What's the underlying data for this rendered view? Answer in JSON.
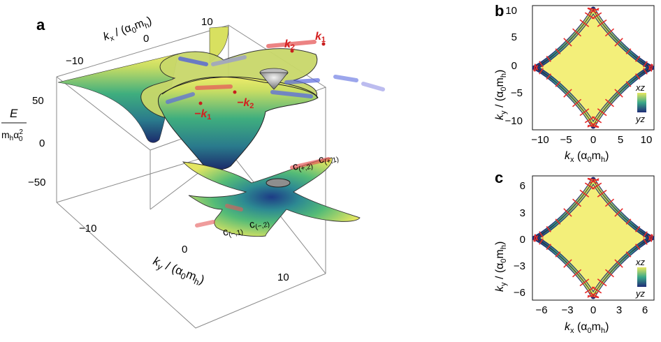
{
  "panel_a": {
    "letter": "a",
    "kx_label": "k",
    "kx_sub": "x",
    "kx_unit": " / (α",
    "kx_unit_sub": "0",
    "kx_unit_end": "m",
    "kx_unit_end_sub": "h",
    "kx_unit_close": ")",
    "kx_ticks": [
      "−10",
      "0",
      "10"
    ],
    "ky_label": "k",
    "ky_sub": "y",
    "ky_unit": " / (α",
    "ky_unit_sub": "0",
    "ky_unit_end": "m",
    "ky_unit_end_sub": "h",
    "ky_unit_close": ")",
    "ky_ticks": [
      "−10",
      "0",
      "10"
    ],
    "e_num": "E",
    "e_den": "m",
    "e_den_sub": "h",
    "e_den_alpha": "α",
    "e_den_alpha_sup": "2",
    "e_den_alpha_sub": "0",
    "e_ticks": [
      "50",
      "0",
      "−50"
    ],
    "k1": "k",
    "k1_sub": "1",
    "k2": "k",
    "k2_sub": "2",
    "mk1": "−k",
    "mk1_sub": "1",
    "mk2": "−k",
    "mk2_sub": "2",
    "c_p2": "c",
    "c_p2_sub": "(+,2)",
    "c_p1": "c",
    "c_p1_sub": "(+,1)",
    "c_m1": "c",
    "c_m1_sub": "(−,1)",
    "c_m2": "c",
    "c_m2_sub": "(−,2)"
  },
  "panel_b": {
    "letter": "b",
    "x_ticks": [
      "−10",
      "−5",
      "0",
      "5",
      "10"
    ],
    "y_ticks": [
      "10",
      "5",
      "0",
      "−5",
      "−10"
    ],
    "xlabel": "k",
    "xlabel_sub": "x",
    "xlabel_unit": " (α",
    "xlabel_unit_sub": "0",
    "xlabel_unit_end": "m",
    "xlabel_unit_end_sub": "h",
    "ylabel": "k",
    "ylabel_sub": "y",
    "ylabel_unit": " / (α",
    "ylabel_unit_sub": "0",
    "ylabel_unit_end": "m",
    "ylabel_unit_end_sub": "h",
    "legend_top": "xz",
    "legend_bottom": "yz"
  },
  "panel_c": {
    "letter": "c",
    "x_ticks": [
      "−6",
      "−3",
      "0",
      "3",
      "6"
    ],
    "y_ticks": [
      "6",
      "3",
      "0",
      "−3",
      "−6"
    ],
    "xlabel": "k",
    "xlabel_sub": "x",
    "xlabel_unit": " (α",
    "xlabel_unit_sub": "0",
    "xlabel_unit_end": "m",
    "xlabel_unit_end_sub": "h",
    "ylabel": "k",
    "ylabel_sub": "y",
    "ylabel_unit": " / (α",
    "ylabel_unit_sub": "0",
    "ylabel_unit_end": "m",
    "ylabel_unit_end_sub": "h",
    "legend_top": "xz",
    "legend_bottom": "yz"
  },
  "colors": {
    "surface_low": "#1b2a6b",
    "surface_mid": "#2fa28a",
    "surface_high": "#e6e85a",
    "spin_red": "#e52a2a",
    "spin_blue": "#4a5ae0"
  }
}
